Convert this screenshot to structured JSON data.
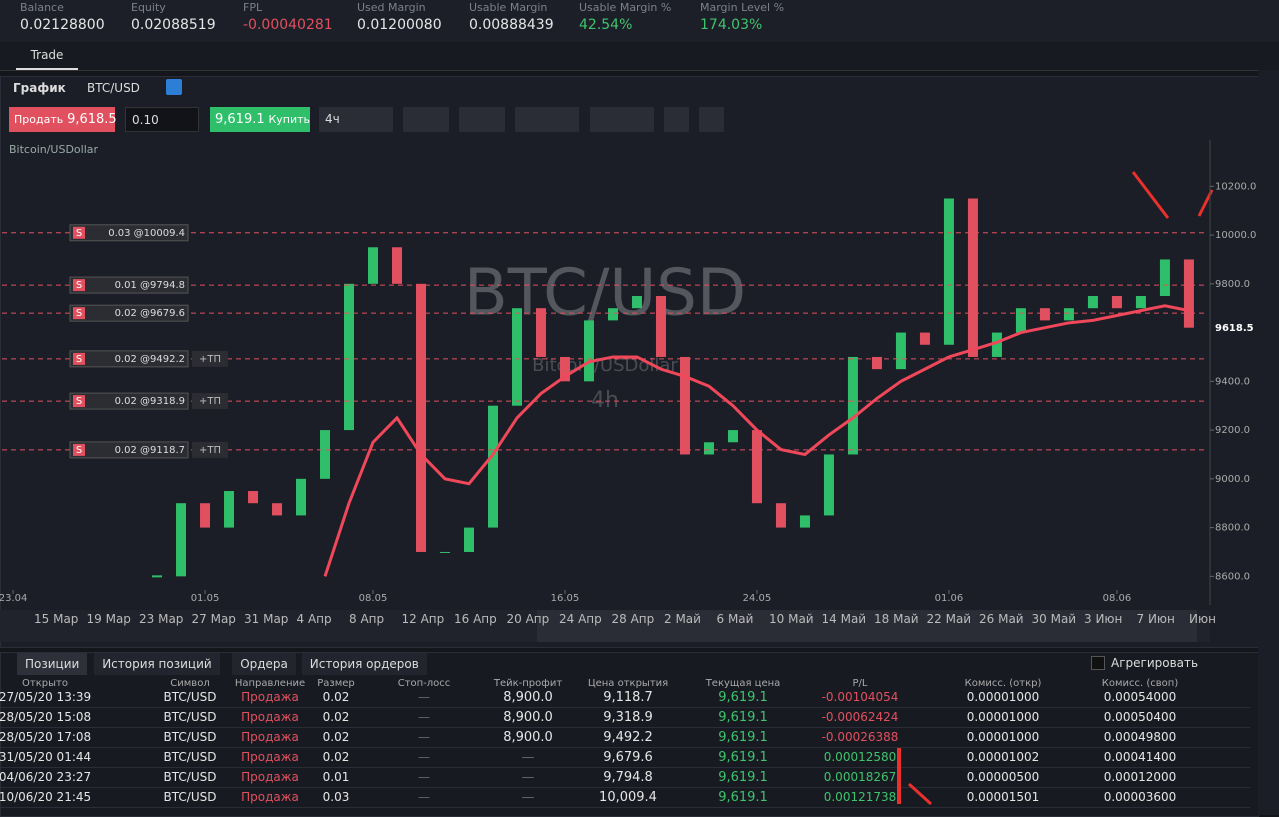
{
  "account": [
    {
      "label": "Balance",
      "value": "0.02128800",
      "color": "#e6e6e6"
    },
    {
      "label": "Equity",
      "value": "0.02088519",
      "color": "#e6e6e6"
    },
    {
      "label": "FPL",
      "value": "-0.00040281",
      "color": "#e0505f"
    },
    {
      "label": "Used Margin",
      "value": "0.01200080",
      "color": "#e6e6e6"
    },
    {
      "label": "Usable Margin",
      "value": "0.00888439",
      "color": "#e6e6e6"
    },
    {
      "label": "Usable Margin %",
      "value": "42.54%",
      "color": "#3ec46d"
    },
    {
      "label": "Margin Level %",
      "value": "174.03%",
      "color": "#3ec46d"
    }
  ],
  "tabs": [
    "Trade"
  ],
  "chart_panel": {
    "title": "График",
    "symbol": "BTC/USD",
    "sell_label": "Продать",
    "sell_price": "9,618.5",
    "quantity": "0.10",
    "buy_price": "9,619.1",
    "buy_label": "Купить",
    "timeframe": "4ч",
    "instrument_name": "Bitcoin/USDollar",
    "watermark": "BTC/USD",
    "watermark_sub": "Bitcoin/USDollar",
    "watermark_tf": "4h"
  },
  "chart": {
    "type": "candlestick",
    "xlim": [
      -0.46,
      49.67
    ],
    "ylim": [
      8544,
      10390
    ],
    "xticks": [
      {
        "value": 0,
        "label": "23.04"
      },
      {
        "value": 8,
        "label": "01.05"
      },
      {
        "value": 15,
        "label": "08.05"
      },
      {
        "value": 23,
        "label": "16.05"
      },
      {
        "value": 31,
        "label": "24.05"
      },
      {
        "value": 39,
        "label": "01.06"
      },
      {
        "value": 46,
        "label": "08.06"
      }
    ],
    "yticks": [
      {
        "value": 10200,
        "label": "10200.0"
      },
      {
        "value": 10000,
        "label": "10000.0"
      },
      {
        "value": 9800,
        "label": "9800.0"
      },
      {
        "value": 9400,
        "label": "9400.0"
      },
      {
        "value": 9200,
        "label": "9200.0"
      },
      {
        "value": 9000,
        "label": "9000.0"
      },
      {
        "value": 8800,
        "label": "8800.0"
      },
      {
        "value": 8600,
        "label": "8600.0"
      }
    ],
    "current_price": {
      "value": 9618.5,
      "label": "9618.5"
    },
    "x": [
      6,
      7,
      8,
      9,
      10,
      11,
      12,
      13,
      14,
      15,
      16,
      17,
      18,
      19,
      20,
      21,
      22,
      23,
      24,
      25,
      26,
      27,
      28,
      29,
      30,
      31,
      32,
      33,
      34,
      35,
      36,
      37,
      38,
      39,
      40,
      41,
      42,
      43,
      44,
      45,
      46,
      47,
      48,
      49
    ],
    "closes": [
      8600,
      8900,
      8800,
      8950,
      8900,
      8850,
      9000,
      9200,
      9800,
      9950,
      9800,
      8700,
      8700,
      8800,
      9300,
      9700,
      9500,
      9400,
      9650,
      9700,
      9750,
      9500,
      9100,
      9150,
      9200,
      8900,
      8800,
      8850,
      9100,
      9500,
      9450,
      9600,
      9550,
      10150,
      9500,
      9600,
      9700,
      9650,
      9700,
      9750,
      9700,
      9750,
      9900,
      9620
    ],
    "ma": [
      null,
      null,
      null,
      null,
      null,
      null,
      null,
      8600,
      8900,
      9150,
      9250,
      9100,
      9000,
      8980,
      9100,
      9250,
      9350,
      9420,
      9480,
      9500,
      9500,
      9450,
      9420,
      9380,
      9300,
      9200,
      9120,
      9100,
      9180,
      9250,
      9330,
      9400,
      9450,
      9500,
      9530,
      9560,
      9600,
      9620,
      9640,
      9650,
      9670,
      9690,
      9710,
      9690
    ],
    "ma_color": "#f0485a",
    "up_color": "#2fbf6a",
    "down_color": "#e0505f",
    "orders": [
      {
        "side": "S",
        "price": 10009.4,
        "label": "0.03 @10009.4"
      },
      {
        "side": "S",
        "price": 9794.8,
        "label": "0.01 @9794.8"
      },
      {
        "side": "S",
        "price": 9679.6,
        "label": "0.02 @9679.6"
      },
      {
        "side": "S",
        "price": 9492.2,
        "label": "0.02 @9492.2",
        "tp": "+ТП"
      },
      {
        "side": "S",
        "price": 9318.9,
        "label": "0.02 @9318.9",
        "tp": "+ТП"
      },
      {
        "side": "S",
        "price": 9118.7,
        "label": "0.02 @9118.7",
        "tp": "+ТП"
      }
    ]
  },
  "navigator": [
    "15 Мар",
    "19 Мар",
    "23 Мар",
    "27 Мар",
    "31 Мар",
    "4 Апр",
    "8 Апр",
    "12 Апр",
    "16 Апр",
    "20 Апр",
    "24 Апр",
    "28 Апр",
    "2 Май",
    "6 Май",
    "10 Май",
    "14 Май",
    "18 Май",
    "22 Май",
    "26 Май",
    "30 Май",
    "3 Июн",
    "7 Июн",
    "Июн"
  ],
  "bottom_tabs": [
    "Позиции",
    "История позиций",
    "Ордера",
    "История ордеров"
  ],
  "aggregate": "Агрегировать",
  "table": {
    "headers": [
      "Открыто",
      "Символ",
      "Направление",
      "Размер",
      "Стоп-лосс",
      "Тейк-профит",
      "Цена открытия",
      "Текущая цена",
      "P/L",
      "Комисс. (откр)",
      "Комисс. (своп)"
    ],
    "rows": [
      [
        "27/05/20 13:39",
        "BTC/USD",
        "Продажа",
        "0.02",
        "—",
        "8,900.0",
        "9,118.7",
        "9,619.1",
        "-0.00104054",
        "0.00001000",
        "0.00054000"
      ],
      [
        "28/05/20 15:08",
        "BTC/USD",
        "Продажа",
        "0.02",
        "—",
        "8,900.0",
        "9,318.9",
        "9,619.1",
        "-0.00062424",
        "0.00001000",
        "0.00050400"
      ],
      [
        "28/05/20 17:08",
        "BTC/USD",
        "Продажа",
        "0.02",
        "—",
        "8,900.0",
        "9,492.2",
        "9,619.1",
        "-0.00026388",
        "0.00001000",
        "0.00049800"
      ],
      [
        "31/05/20 01:44",
        "BTC/USD",
        "Продажа",
        "0.02",
        "—",
        "—",
        "9,679.6",
        "9,619.1",
        "0.00012580",
        "0.00001002",
        "0.00041400"
      ],
      [
        "04/06/20 23:27",
        "BTC/USD",
        "Продажа",
        "0.01",
        "—",
        "—",
        "9,794.8",
        "9,619.1",
        "0.00018267",
        "0.00000500",
        "0.00012000"
      ],
      [
        "10/06/20 21:45",
        "BTC/USD",
        "Продажа",
        "0.03",
        "—",
        "—",
        "10,009.4",
        "9,619.1",
        "0.00121738",
        "0.00001501",
        "0.00003600"
      ]
    ]
  }
}
